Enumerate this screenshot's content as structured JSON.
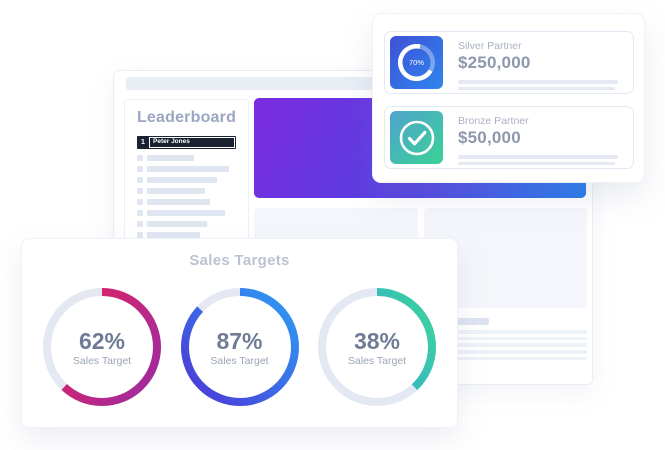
{
  "colors": {
    "banner_gradient": [
      "#7B2CE0",
      "#5240E1",
      "#2379EC"
    ],
    "ring_track": "#E3E8F2",
    "placeholder": "#E0E6F1",
    "leaderboard_dark": "#1B2232"
  },
  "dashboard": {
    "leaderboard": {
      "title": "Leaderboard",
      "top_entry": {
        "rank": "1",
        "name": "Peter Jones"
      },
      "placeholder_row_widths": [
        47,
        82,
        70,
        58,
        63,
        78,
        60,
        53,
        73,
        85
      ]
    },
    "detail_line_count": 5
  },
  "partner_card": {
    "items": [
      {
        "label": "Silver Partner",
        "amount": "$250,000",
        "icon": "progress-donut",
        "progress_percent": 70,
        "progress_display": "70%",
        "tile_gradient": [
          "#3E51D6",
          "#2E86EE"
        ]
      },
      {
        "label": "Bronze Partner",
        "amount": "$50,000",
        "icon": "check-circle",
        "tile_gradient": [
          "#4FA3CE",
          "#3AD295"
        ]
      }
    ]
  },
  "sales_card": {
    "title": "Sales Targets",
    "targets": [
      {
        "percent": 62,
        "display": "62%",
        "label": "Sales Target",
        "gradient": [
          "#E8215E",
          "#9E2B9E"
        ]
      },
      {
        "percent": 87,
        "display": "87%",
        "label": "Sales Target",
        "gradient": [
          "#4E35D6",
          "#2F99F3"
        ]
      },
      {
        "percent": 38,
        "display": "38%",
        "label": "Sales Target",
        "gradient": [
          "#2C9FE5",
          "#3ED39B"
        ]
      }
    ]
  }
}
